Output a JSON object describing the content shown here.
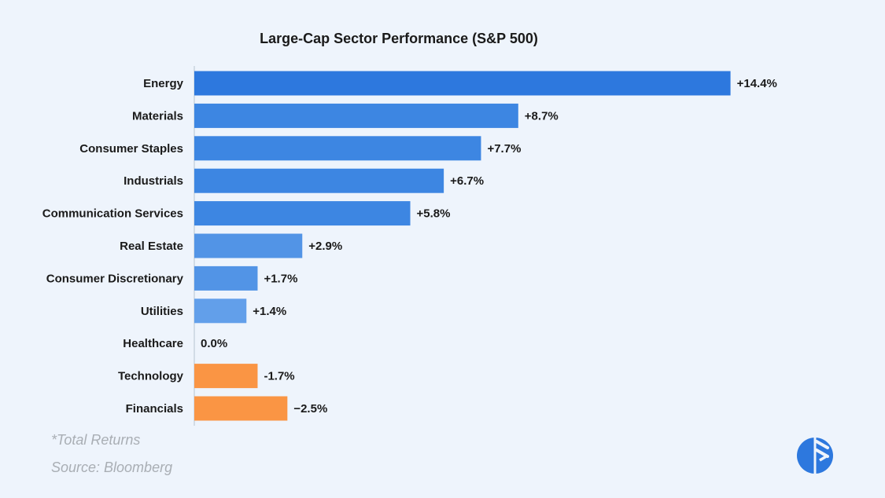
{
  "chart_data": {
    "type": "bar",
    "orientation": "horizontal",
    "title": "Large-Cap Sector Performance (S&P 500)",
    "categories": [
      "Energy",
      "Materials",
      "Consumer Staples",
      "Industrials",
      "Communication Services",
      "Real Estate",
      "Consumer Discretionary",
      "Utilities",
      "Healthcare",
      "Technology",
      "Financials"
    ],
    "values": [
      14.4,
      8.7,
      7.7,
      6.7,
      5.8,
      2.9,
      1.7,
      1.4,
      0.0,
      -1.7,
      -2.5
    ],
    "value_labels": [
      "+14.4%",
      "+8.7%",
      "+7.7%",
      "+6.7%",
      "+5.8%",
      "+2.9%",
      "+1.7%",
      "+1.4%",
      "0.0%",
      "-1.7%",
      "−2.5%"
    ],
    "xlim": [
      0,
      15
    ],
    "grid": false,
    "legend": "none",
    "xlabel": "",
    "ylabel": "",
    "colors": {
      "positive_strong": "#2d78de",
      "positive_mid": "#3d86e2",
      "positive_light": "#5294e6",
      "positive_lightest": "#629fea",
      "negative": "#fa9544",
      "axis": "#c9d4df"
    }
  },
  "footnotes": {
    "total_returns": "*Total Returns",
    "source": "Source: Bloomberg"
  },
  "logo": {
    "icon": "brand-logo-icon",
    "color": "#2d78de"
  }
}
